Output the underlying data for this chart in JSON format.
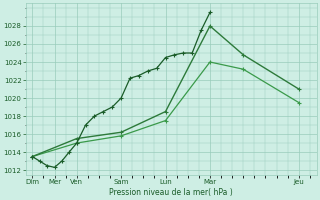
{
  "background_color": "#ceeee4",
  "grid_color": "#99ccbb",
  "dark_green": "#1a5c28",
  "mid_green": "#2d7a3a",
  "light_green": "#3a9a4a",
  "ylabel": "Pression niveau de la mer( hPa )",
  "ylim": [
    1011.5,
    1030.5
  ],
  "yticks": [
    1012,
    1014,
    1016,
    1018,
    1020,
    1022,
    1024,
    1026,
    1028
  ],
  "day_positions": [
    0,
    1,
    2,
    4,
    6,
    8,
    12
  ],
  "day_labels": [
    "Dim",
    "Mer",
    "Ven",
    "Sam",
    "Lun",
    "Mar",
    "Jeu"
  ],
  "xlim": [
    -0.3,
    12.8
  ],
  "line1_x": [
    0,
    0.33,
    0.66,
    1.0,
    1.33,
    1.66,
    2.0,
    2.4,
    2.8,
    3.2,
    3.6,
    4.0,
    4.4,
    4.8,
    5.2,
    5.6,
    6.0,
    6.4,
    6.8,
    7.2,
    7.6,
    8.0
  ],
  "line1_y": [
    1013.5,
    1013.0,
    1012.5,
    1012.3,
    1013.0,
    1014.0,
    1015.0,
    1017.0,
    1018.0,
    1018.5,
    1019.0,
    1020.0,
    1022.2,
    1022.5,
    1023.0,
    1023.3,
    1024.5,
    1024.8,
    1025.0,
    1025.0,
    1027.5,
    1029.5
  ],
  "line2_x": [
    0,
    2,
    4,
    6,
    8,
    9.5,
    12
  ],
  "line2_y": [
    1013.5,
    1015.5,
    1016.2,
    1018.5,
    1028.0,
    1024.8,
    1021.0
  ],
  "line3_x": [
    0,
    2,
    4,
    6,
    8,
    9.5,
    12
  ],
  "line3_y": [
    1013.5,
    1015.0,
    1015.8,
    1017.5,
    1024.0,
    1023.2,
    1019.5
  ]
}
